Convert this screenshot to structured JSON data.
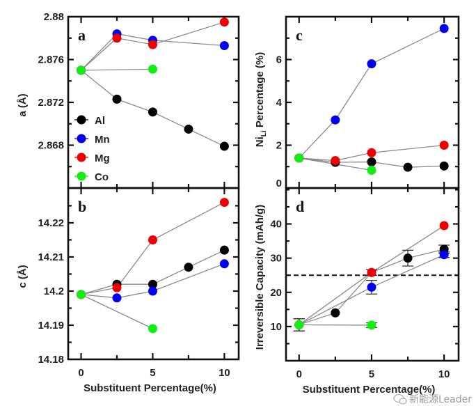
{
  "colors": {
    "Al": "#000000",
    "Mn": "#0000ee",
    "Mg": "#ee0000",
    "Co": "#11ee11",
    "line": "#8a8a8a",
    "frame": "#111111"
  },
  "watermark": "新能源Leader",
  "chart_data": [
    {
      "id": "a",
      "type": "line",
      "panel_label": "a",
      "xlabel": "",
      "ylabel": "a (Å)",
      "xlim": [
        -0.9,
        11
      ],
      "ylim": [
        2.864,
        2.88
      ],
      "yticks": [
        2.868,
        2.872,
        2.876,
        2.88
      ],
      "ytick_labels": [
        "2.868",
        "2.872",
        "2.876",
        "2.88"
      ],
      "xticks": [
        0,
        2.5,
        5,
        7.5,
        10
      ],
      "xtick_labels": [],
      "legend": {
        "placement": "bottom-left",
        "entries": [
          "Al",
          "Mn",
          "Mg",
          "Co"
        ]
      },
      "series": [
        {
          "name": "Al",
          "x": [
            0,
            2.5,
            5,
            7.5,
            10
          ],
          "y": [
            2.875,
            2.8723,
            2.8711,
            2.8695,
            2.8679
          ]
        },
        {
          "name": "Mn",
          "x": [
            0,
            2.5,
            5,
            10
          ],
          "y": [
            2.875,
            2.8784,
            2.8778,
            2.8773
          ]
        },
        {
          "name": "Mg",
          "x": [
            0,
            2.5,
            5,
            10
          ],
          "y": [
            2.875,
            2.878,
            2.8774,
            2.8795
          ]
        },
        {
          "name": "Co",
          "x": [
            0,
            5
          ],
          "y": [
            2.875,
            2.8751
          ]
        }
      ]
    },
    {
      "id": "b",
      "type": "line",
      "panel_label": "b",
      "xlabel": "Substituent Percentage(%)",
      "ylabel": "c (Å)",
      "xlim": [
        -0.9,
        11
      ],
      "ylim": [
        14.18,
        14.2302
      ],
      "yticks": [
        14.18,
        14.19,
        14.2,
        14.21,
        14.22
      ],
      "ytick_labels": [
        "14.18",
        "14.19",
        "14.2",
        "14.21",
        "14.22"
      ],
      "xticks": [
        0,
        2.5,
        5,
        7.5,
        10
      ],
      "xtick_labels": [
        "0",
        "5",
        "10"
      ],
      "series": [
        {
          "name": "Al",
          "x": [
            0,
            2.5,
            5,
            7.5,
            10
          ],
          "y": [
            14.199,
            14.202,
            14.202,
            14.207,
            14.212
          ]
        },
        {
          "name": "Mn",
          "x": [
            0,
            2.5,
            5,
            10
          ],
          "y": [
            14.199,
            14.198,
            14.2,
            14.208
          ]
        },
        {
          "name": "Mg",
          "x": [
            0,
            2.5,
            5,
            10
          ],
          "y": [
            14.199,
            14.201,
            14.215,
            14.226
          ]
        },
        {
          "name": "Co",
          "x": [
            0,
            5
          ],
          "y": [
            14.199,
            14.189
          ]
        }
      ]
    },
    {
      "id": "c",
      "type": "line",
      "panel_label": "c",
      "xlabel": "",
      "ylabel": "Ni_Li Percentage (%)",
      "ylabel_main": "Ni",
      "ylabel_sub": "Li",
      "ylabel_rest": " Percentage (%)",
      "xlim": [
        -0.9,
        11
      ],
      "ylim": [
        0,
        8
      ],
      "yticks": [
        0,
        2,
        4,
        6
      ],
      "ytick_labels": [
        "0",
        "2",
        "4",
        "6"
      ],
      "xticks": [
        0,
        2.5,
        5,
        7.5,
        10
      ],
      "xtick_labels": [],
      "series": [
        {
          "name": "Al",
          "x": [
            0,
            2.5,
            5,
            7.5,
            10
          ],
          "y": [
            1.4,
            1.2,
            1.22,
            0.97,
            1.03
          ]
        },
        {
          "name": "Mn",
          "x": [
            0,
            2.5,
            5,
            10
          ],
          "y": [
            1.4,
            3.18,
            5.8,
            7.45
          ]
        },
        {
          "name": "Mg",
          "x": [
            0,
            2.5,
            5,
            10
          ],
          "y": [
            1.4,
            1.28,
            1.65,
            2.0
          ]
        },
        {
          "name": "Co",
          "x": [
            0,
            5
          ],
          "y": [
            1.4,
            0.83
          ]
        }
      ]
    },
    {
      "id": "d",
      "type": "line",
      "panel_label": "d",
      "xlabel": "Substituent Percentage(%)",
      "ylabel": "Irreversible Capacity (mAh/g)",
      "xlim": [
        -0.9,
        11
      ],
      "ylim": [
        0,
        50.5
      ],
      "yticks": [
        10,
        20,
        30,
        40
      ],
      "ytick_labels": [
        "10",
        "20",
        "30",
        "40"
      ],
      "xticks": [
        0,
        2.5,
        5,
        7.5,
        10
      ],
      "xtick_labels": [
        "0",
        "5",
        "10"
      ],
      "reference_line": {
        "y": 25,
        "style": "dashed"
      },
      "series": [
        {
          "name": "Al",
          "x": [
            0,
            2.5,
            5,
            7.5,
            10
          ],
          "y": [
            10.5,
            14.0,
            25.8,
            30.0,
            32.6
          ],
          "err": [
            1.8,
            0,
            0.8,
            2.3,
            1.2
          ]
        },
        {
          "name": "Mn",
          "x": [
            0,
            5,
            10
          ],
          "y": [
            10.5,
            21.5,
            31.0
          ],
          "err": [
            1.8,
            2.0,
            0.8
          ]
        },
        {
          "name": "Mg",
          "x": [
            0,
            5,
            10
          ],
          "y": [
            10.5,
            25.8,
            39.5
          ],
          "err": [
            1.8,
            0.8,
            0
          ]
        },
        {
          "name": "Co",
          "x": [
            0,
            5
          ],
          "y": [
            10.5,
            10.4
          ],
          "err": [
            1.8,
            0.7
          ]
        }
      ]
    }
  ]
}
